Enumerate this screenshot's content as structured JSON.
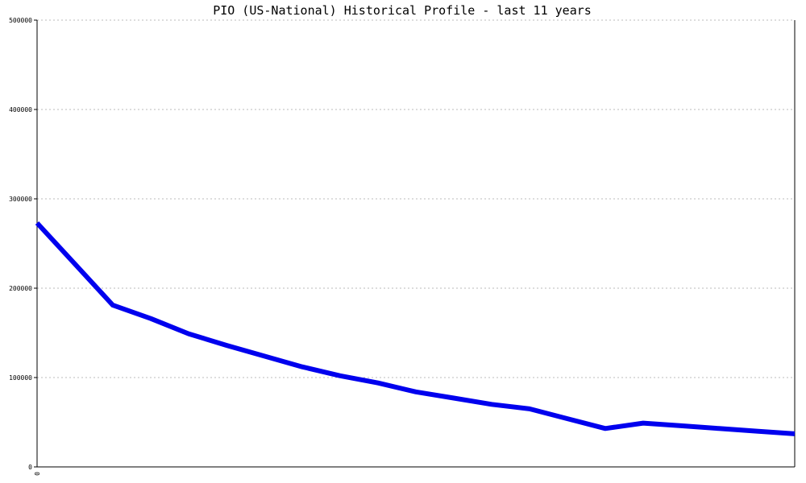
{
  "chart_data": {
    "type": "line",
    "title": "PIO (US-National) Historical Profile - last 11 years",
    "xlabel": "",
    "ylabel": "",
    "x_tick_labels": [
      "0"
    ],
    "y_ticks": [
      0,
      100000,
      200000,
      300000,
      400000,
      500000
    ],
    "y_tick_labels": [
      "0",
      "100000",
      "200000",
      "300000",
      "400000",
      "500000"
    ],
    "ylim": [
      0,
      500000
    ],
    "grid": true,
    "legend": "none",
    "series": [
      {
        "color": "#0000ee",
        "values": [
          273000,
          227000,
          181000,
          166000,
          149000,
          136000,
          124000,
          112000,
          102000,
          94000,
          84000,
          77000,
          70000,
          65000,
          54000,
          43000,
          49000,
          46000,
          43000,
          40000,
          37000
        ]
      }
    ]
  }
}
